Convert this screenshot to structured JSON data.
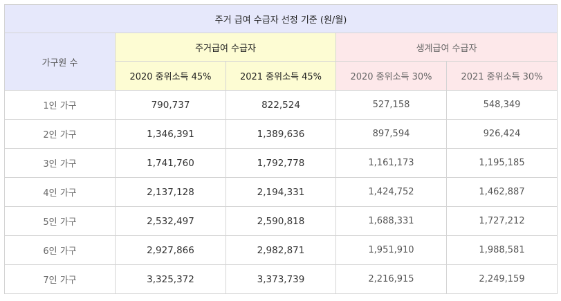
{
  "table": {
    "title": "주거 급여 수급자 선정 기준 (원/월)",
    "household_header": "가구원 수",
    "groups": [
      {
        "label": "주거급여 수급자",
        "subheaders": [
          "2020 중위소득 45%",
          "2021 중위소득 45%"
        ],
        "color": "#fdfcd3"
      },
      {
        "label": "생계급여 수급자",
        "subheaders": [
          "2020 중위소득 30%",
          "2021 중위소득 30%"
        ],
        "color": "#fde8ea"
      }
    ],
    "rows": [
      {
        "label": "1인 가구",
        "values": [
          "790,737",
          "822,524",
          "527,158",
          "548,349"
        ]
      },
      {
        "label": "2인 가구",
        "values": [
          "1,346,391",
          "1,389,636",
          "897,594",
          "926,424"
        ]
      },
      {
        "label": "3인 가구",
        "values": [
          "1,741,760",
          "1,792,778",
          "1,161,173",
          "1,195,185"
        ]
      },
      {
        "label": "4인 가구",
        "values": [
          "2,137,128",
          "2,194,331",
          "1,424,752",
          "1,462,887"
        ]
      },
      {
        "label": "5인 가구",
        "values": [
          "2,532,497",
          "2,590,818",
          "1,688,331",
          "1,727,212"
        ]
      },
      {
        "label": "6인 가구",
        "values": [
          "2,927,866",
          "2,982,871",
          "1,951,910",
          "1,988,581"
        ]
      },
      {
        "label": "7인 가구",
        "values": [
          "3,325,372",
          "3,373,739",
          "2,216,915",
          "2,249,159"
        ]
      }
    ]
  }
}
